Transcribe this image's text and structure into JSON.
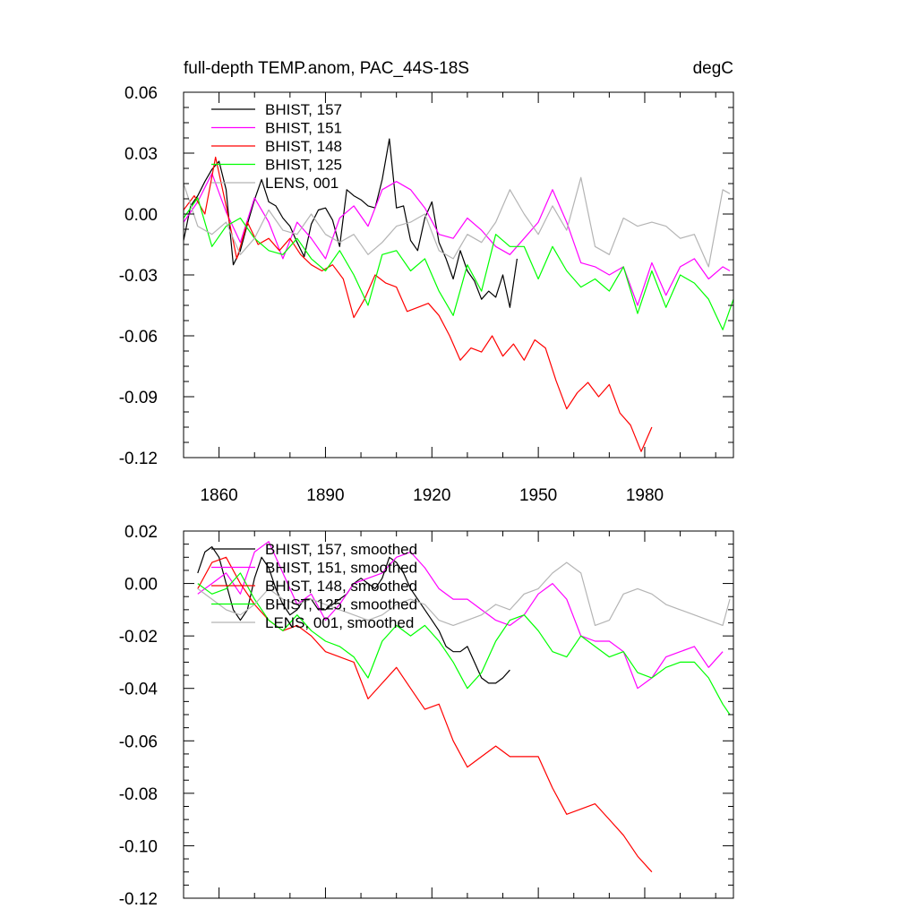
{
  "figure": {
    "left_title": "full-depth TEMP.anom, PAC_44S-18S",
    "right_title": "degC"
  },
  "chart_data": [
    {
      "type": "line",
      "title": "full-depth TEMP.anom, PAC_44S-18S",
      "units": "degC",
      "xlim": [
        1850,
        2005
      ],
      "ylim": [
        -0.12,
        0.06
      ],
      "x_ticks": [
        1860,
        1890,
        1920,
        1950,
        1980
      ],
      "x_tick_labels": [
        "1860",
        "1890",
        "1920",
        "1950",
        "1980"
      ],
      "y_ticks": [
        -0.12,
        -0.09,
        -0.06,
        -0.03,
        0.0,
        0.03,
        0.06
      ],
      "y_tick_labels": [
        "-0.12",
        "-0.09",
        "-0.06",
        "-0.03",
        "0.00",
        "0.03",
        "0.06"
      ],
      "legend": {
        "placement": "top-left"
      },
      "series": [
        {
          "name": "BHIST, 157",
          "color": "#000000",
          "x": [
            1850,
            1852,
            1854,
            1856,
            1858,
            1860,
            1862,
            1864,
            1866,
            1868,
            1870,
            1872,
            1874,
            1876,
            1878,
            1880,
            1882,
            1884,
            1886,
            1888,
            1890,
            1892,
            1894,
            1896,
            1898,
            1900,
            1902,
            1904,
            1906,
            1908,
            1910,
            1912,
            1914,
            1916,
            1918,
            1920,
            1922,
            1924,
            1926,
            1928,
            1930,
            1932,
            1934,
            1936,
            1938,
            1940,
            1942,
            1944
          ],
          "values": [
            -0.013,
            0.004,
            0.009,
            0.016,
            0.022,
            0.026,
            0.012,
            -0.025,
            -0.018,
            -0.005,
            0.007,
            0.017,
            0.006,
            0.004,
            -0.002,
            -0.006,
            -0.014,
            -0.021,
            -0.005,
            0.002,
            0.003,
            -0.003,
            -0.016,
            0.012,
            0.009,
            0.007,
            0.004,
            0.003,
            0.017,
            0.037,
            0.003,
            0.004,
            -0.013,
            -0.018,
            -0.002,
            0.006,
            -0.014,
            -0.022,
            -0.032,
            -0.018,
            -0.028,
            -0.033,
            -0.042,
            -0.038,
            -0.041,
            -0.03,
            -0.046,
            -0.022
          ]
        },
        {
          "name": "BHIST, 151",
          "color": "#ff00ff",
          "x": [
            1850,
            1854,
            1858,
            1862,
            1866,
            1870,
            1874,
            1878,
            1882,
            1886,
            1890,
            1894,
            1898,
            1902,
            1906,
            1910,
            1914,
            1918,
            1922,
            1926,
            1930,
            1934,
            1938,
            1942,
            1946,
            1950,
            1954,
            1958,
            1962,
            1966,
            1970,
            1974,
            1978,
            1982,
            1986,
            1990,
            1994,
            1998,
            2002,
            2004
          ],
          "values": [
            -0.004,
            0.006,
            0.02,
            0.001,
            -0.014,
            0.008,
            -0.004,
            -0.022,
            -0.004,
            -0.012,
            -0.022,
            -0.002,
            0.004,
            -0.006,
            0.012,
            0.016,
            0.012,
            0.003,
            -0.01,
            -0.012,
            -0.002,
            -0.008,
            -0.016,
            -0.02,
            -0.012,
            -0.004,
            0.012,
            -0.004,
            -0.024,
            -0.026,
            -0.03,
            -0.026,
            -0.045,
            -0.024,
            -0.04,
            -0.026,
            -0.022,
            -0.032,
            -0.026,
            -0.028
          ]
        },
        {
          "name": "BHIST, 148",
          "color": "#ff0000",
          "x": [
            1850,
            1853,
            1856,
            1859,
            1862,
            1865,
            1868,
            1871,
            1874,
            1877,
            1880,
            1883,
            1886,
            1889,
            1892,
            1895,
            1898,
            1901,
            1904,
            1907,
            1910,
            1913,
            1916,
            1919,
            1922,
            1925,
            1928,
            1931,
            1934,
            1937,
            1940,
            1943,
            1946,
            1949,
            1952,
            1955,
            1958,
            1961,
            1964,
            1967,
            1970,
            1973,
            1976,
            1979,
            1982
          ],
          "values": [
            0.002,
            0.009,
            0.0,
            0.028,
            0.004,
            -0.022,
            -0.004,
            -0.015,
            -0.012,
            -0.018,
            -0.012,
            -0.02,
            -0.025,
            -0.028,
            -0.025,
            -0.032,
            -0.051,
            -0.042,
            -0.03,
            -0.034,
            -0.036,
            -0.048,
            -0.046,
            -0.044,
            -0.05,
            -0.06,
            -0.072,
            -0.066,
            -0.068,
            -0.06,
            -0.07,
            -0.064,
            -0.072,
            -0.062,
            -0.066,
            -0.082,
            -0.096,
            -0.088,
            -0.083,
            -0.09,
            -0.084,
            -0.098,
            -0.104,
            -0.117,
            -0.105
          ]
        },
        {
          "name": "BHIST, 125",
          "color": "#00ff00",
          "x": [
            1850,
            1854,
            1858,
            1862,
            1866,
            1870,
            1874,
            1878,
            1882,
            1886,
            1890,
            1894,
            1898,
            1902,
            1906,
            1910,
            1914,
            1918,
            1922,
            1926,
            1930,
            1934,
            1938,
            1942,
            1946,
            1950,
            1954,
            1958,
            1962,
            1966,
            1970,
            1974,
            1978,
            1982,
            1986,
            1990,
            1994,
            1998,
            2002,
            2005
          ],
          "values": [
            -0.002,
            0.008,
            -0.016,
            -0.006,
            -0.002,
            -0.012,
            -0.018,
            -0.02,
            -0.012,
            -0.022,
            -0.028,
            -0.018,
            -0.03,
            -0.045,
            -0.02,
            -0.018,
            -0.028,
            -0.022,
            -0.038,
            -0.05,
            -0.025,
            -0.038,
            -0.01,
            -0.016,
            -0.016,
            -0.032,
            -0.016,
            -0.028,
            -0.036,
            -0.032,
            -0.038,
            -0.026,
            -0.049,
            -0.028,
            -0.046,
            -0.03,
            -0.034,
            -0.042,
            -0.057,
            -0.042
          ]
        },
        {
          "name": "LENS, 001",
          "color": "#b4b4b4",
          "x": [
            1850,
            1854,
            1858,
            1862,
            1866,
            1870,
            1874,
            1878,
            1882,
            1886,
            1890,
            1894,
            1898,
            1902,
            1906,
            1910,
            1914,
            1918,
            1922,
            1926,
            1930,
            1934,
            1938,
            1942,
            1946,
            1950,
            1954,
            1958,
            1962,
            1966,
            1970,
            1974,
            1978,
            1982,
            1986,
            1990,
            1994,
            1998,
            2002,
            2004
          ],
          "values": [
            0.015,
            -0.006,
            -0.01,
            -0.004,
            -0.02,
            -0.012,
            0.002,
            -0.008,
            -0.01,
            0.0,
            -0.01,
            -0.014,
            -0.01,
            -0.02,
            -0.014,
            -0.006,
            -0.004,
            0.0,
            -0.018,
            -0.022,
            -0.01,
            -0.014,
            -0.004,
            0.012,
            0.0,
            -0.01,
            0.004,
            -0.008,
            0.018,
            -0.016,
            -0.02,
            -0.002,
            -0.006,
            -0.004,
            -0.006,
            -0.012,
            -0.01,
            -0.026,
            0.012,
            0.01
          ]
        }
      ]
    },
    {
      "type": "line",
      "title": "",
      "xlim": [
        1850,
        2005
      ],
      "ylim": [
        -0.12,
        0.02
      ],
      "x_ticks": [
        1860,
        1890,
        1920,
        1950,
        1980
      ],
      "y_ticks": [
        -0.12,
        -0.1,
        -0.08,
        -0.06,
        -0.04,
        -0.02,
        0.0,
        0.02
      ],
      "y_tick_labels": [
        "-0.12",
        "-0.10",
        "-0.08",
        "-0.06",
        "-0.04",
        "-0.02",
        "0.00",
        "0.02"
      ],
      "legend": {
        "placement": "top-left"
      },
      "series": [
        {
          "name": "BHIST, 157, smoothed",
          "color": "#000000",
          "x": [
            1854,
            1856,
            1858,
            1860,
            1862,
            1864,
            1866,
            1868,
            1870,
            1872,
            1874,
            1876,
            1878,
            1880,
            1882,
            1884,
            1886,
            1888,
            1890,
            1892,
            1894,
            1896,
            1898,
            1900,
            1902,
            1904,
            1906,
            1908,
            1910,
            1912,
            1914,
            1916,
            1918,
            1920,
            1922,
            1924,
            1926,
            1928,
            1930,
            1932,
            1934,
            1936,
            1938,
            1940,
            1942
          ],
          "values": [
            0.004,
            0.012,
            0.014,
            0.01,
            0.0,
            -0.01,
            -0.014,
            -0.01,
            0.002,
            0.01,
            0.006,
            -0.002,
            -0.008,
            -0.012,
            -0.01,
            -0.006,
            -0.006,
            -0.01,
            -0.01,
            -0.008,
            -0.006,
            -0.004,
            0.0,
            0.002,
            0.0,
            -0.002,
            0.002,
            0.01,
            0.008,
            0.004,
            -0.002,
            -0.006,
            -0.01,
            -0.014,
            -0.018,
            -0.024,
            -0.026,
            -0.026,
            -0.024,
            -0.03,
            -0.036,
            -0.038,
            -0.038,
            -0.036,
            -0.033
          ]
        },
        {
          "name": "BHIST, 151, smoothed",
          "color": "#ff00ff",
          "x": [
            1854,
            1858,
            1862,
            1866,
            1870,
            1874,
            1878,
            1882,
            1886,
            1890,
            1894,
            1898,
            1902,
            1906,
            1910,
            1914,
            1918,
            1922,
            1926,
            1930,
            1934,
            1938,
            1942,
            1946,
            1950,
            1954,
            1958,
            1962,
            1966,
            1970,
            1974,
            1978,
            1982,
            1986,
            1990,
            1994,
            1998,
            2002
          ],
          "values": [
            -0.004,
            0.0,
            0.004,
            -0.004,
            0.012,
            0.016,
            0.004,
            -0.008,
            -0.004,
            -0.014,
            -0.008,
            0.0,
            0.002,
            0.004,
            0.01,
            0.012,
            0.006,
            -0.002,
            -0.006,
            -0.006,
            -0.01,
            -0.014,
            -0.016,
            -0.012,
            -0.004,
            0.0,
            -0.006,
            -0.02,
            -0.022,
            -0.022,
            -0.026,
            -0.04,
            -0.036,
            -0.028,
            -0.026,
            -0.024,
            -0.032,
            -0.026
          ]
        },
        {
          "name": "BHIST, 148, smoothed",
          "color": "#ff0000",
          "x": [
            1854,
            1858,
            1862,
            1866,
            1870,
            1874,
            1878,
            1882,
            1886,
            1890,
            1894,
            1898,
            1902,
            1906,
            1910,
            1914,
            1918,
            1922,
            1926,
            1930,
            1934,
            1938,
            1942,
            1946,
            1950,
            1954,
            1958,
            1962,
            1966,
            1970,
            1974,
            1978,
            1982
          ],
          "values": [
            -0.002,
            0.008,
            0.01,
            0.0,
            -0.008,
            -0.014,
            -0.018,
            -0.016,
            -0.02,
            -0.026,
            -0.028,
            -0.03,
            -0.044,
            -0.038,
            -0.032,
            -0.04,
            -0.048,
            -0.046,
            -0.06,
            -0.07,
            -0.066,
            -0.062,
            -0.066,
            -0.066,
            -0.066,
            -0.078,
            -0.088,
            -0.086,
            -0.084,
            -0.09,
            -0.096,
            -0.104,
            -0.11
          ]
        },
        {
          "name": "BHIST, 125, smoothed",
          "color": "#00ff00",
          "x": [
            1854,
            1858,
            1862,
            1866,
            1870,
            1874,
            1878,
            1882,
            1886,
            1890,
            1894,
            1898,
            1902,
            1906,
            1910,
            1914,
            1918,
            1922,
            1926,
            1930,
            1934,
            1938,
            1942,
            1946,
            1950,
            1954,
            1958,
            1962,
            1966,
            1970,
            1974,
            1978,
            1982,
            1986,
            1990,
            1994,
            1998,
            2002,
            2004
          ],
          "values": [
            0.0,
            -0.004,
            -0.002,
            0.004,
            -0.006,
            -0.014,
            -0.018,
            -0.012,
            -0.018,
            -0.022,
            -0.024,
            -0.028,
            -0.036,
            -0.022,
            -0.016,
            -0.02,
            -0.016,
            -0.022,
            -0.03,
            -0.04,
            -0.034,
            -0.022,
            -0.014,
            -0.012,
            -0.018,
            -0.026,
            -0.028,
            -0.02,
            -0.024,
            -0.028,
            -0.026,
            -0.034,
            -0.036,
            -0.032,
            -0.03,
            -0.03,
            -0.036,
            -0.046,
            -0.05
          ]
        },
        {
          "name": "LENS, 001, smoothed",
          "color": "#b4b4b4",
          "x": [
            1854,
            1858,
            1862,
            1866,
            1870,
            1874,
            1878,
            1882,
            1886,
            1890,
            1894,
            1898,
            1902,
            1906,
            1910,
            1914,
            1918,
            1922,
            1926,
            1930,
            1934,
            1938,
            1942,
            1946,
            1950,
            1954,
            1958,
            1962,
            1966,
            1970,
            1974,
            1978,
            1982,
            1986,
            1990,
            1994,
            1998,
            2002,
            2004
          ],
          "values": [
            -0.002,
            -0.006,
            -0.01,
            -0.012,
            -0.008,
            -0.002,
            -0.006,
            -0.008,
            -0.006,
            -0.008,
            -0.01,
            -0.012,
            -0.014,
            -0.012,
            -0.008,
            -0.006,
            -0.008,
            -0.014,
            -0.016,
            -0.014,
            -0.012,
            -0.008,
            -0.01,
            -0.004,
            -0.002,
            0.004,
            0.008,
            0.004,
            -0.016,
            -0.014,
            -0.004,
            -0.002,
            -0.004,
            -0.008,
            -0.01,
            -0.012,
            -0.014,
            -0.016,
            -0.006
          ]
        }
      ]
    }
  ]
}
